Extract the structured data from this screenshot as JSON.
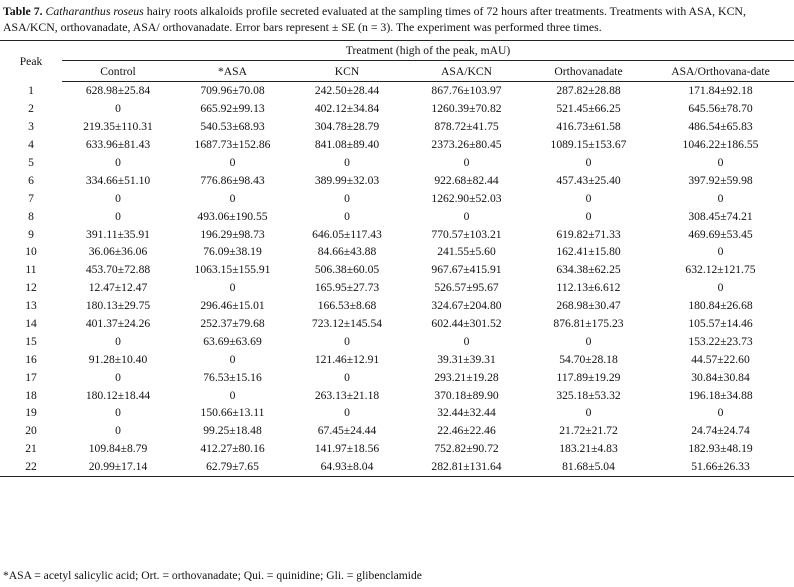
{
  "caption": {
    "label": "Table 7.",
    "species": "Catharanthus roseus",
    "text": "hairy roots alkaloids profile secreted evaluated at the sampling times of 72 hours after treatments. Treatments with ASA, KCN, ASA/KCN, orthovanadate, ASA/ orthovanadate. Error bars represent ± SE (n = 3). The experiment was performed three times."
  },
  "header": {
    "peak": "Peak",
    "treatment": "Treatment (high of the peak, mAU)",
    "columns": [
      "Control",
      "*ASA",
      "KCN",
      "ASA/KCN",
      "Orthovanadate",
      "ASA/Orthovana-date"
    ]
  },
  "rows": [
    [
      "1",
      "628.98±25.84",
      "709.96±70.08",
      "242.50±28.44",
      "867.76±103.97",
      "287.82±28.88",
      "171.84±92.18"
    ],
    [
      "2",
      "0",
      "665.92±99.13",
      "402.12±34.84",
      "1260.39±70.82",
      "521.45±66.25",
      "645.56±78.70"
    ],
    [
      "3",
      "219.35±110.31",
      "540.53±68.93",
      "304.78±28.79",
      "878.72±41.75",
      "416.73±61.58",
      "486.54±65.83"
    ],
    [
      "4",
      "633.96±81.43",
      "1687.73±152.86",
      "841.08±89.40",
      "2373.26±80.45",
      "1089.15±153.67",
      "1046.22±186.55"
    ],
    [
      "5",
      "0",
      "0",
      "0",
      "0",
      "0",
      "0"
    ],
    [
      "6",
      "334.66±51.10",
      "776.86±98.43",
      "389.99±32.03",
      "922.68±82.44",
      "457.43±25.40",
      "397.92±59.98"
    ],
    [
      "7",
      "0",
      "0",
      "0",
      "1262.90±52.03",
      "0",
      "0"
    ],
    [
      "8",
      "0",
      "493.06±190.55",
      "0",
      "0",
      "0",
      "308.45±74.21"
    ],
    [
      "9",
      "391.11±35.91",
      "196.29±98.73",
      "646.05±117.43",
      "770.57±103.21",
      "619.82±71.33",
      "469.69±53.45"
    ],
    [
      "10",
      "36.06±36.06",
      "76.09±38.19",
      "84.66±43.88",
      "241.55±5.60",
      "162.41±15.80",
      "0"
    ],
    [
      "11",
      "453.70±72.88",
      "1063.15±155.91",
      "506.38±60.05",
      "967.67±415.91",
      "634.38±62.25",
      "632.12±121.75"
    ],
    [
      "12",
      "12.47±12.47",
      "0",
      "165.95±27.73",
      "526.57±95.67",
      "112.13±6.612",
      "0"
    ],
    [
      "13",
      "180.13±29.75",
      "296.46±15.01",
      "166.53±8.68",
      "324.67±204.80",
      "268.98±30.47",
      "180.84±26.68"
    ],
    [
      "14",
      "401.37±24.26",
      "252.37±79.68",
      "723.12±145.54",
      "602.44±301.52",
      "876.81±175.23",
      "105.57±14.46"
    ],
    [
      "15",
      "0",
      "63.69±63.69",
      "0",
      "0",
      "0",
      "153.22±23.73"
    ],
    [
      "16",
      "91.28±10.40",
      "0",
      "121.46±12.91",
      "39.31±39.31",
      "54.70±28.18",
      "44.57±22.60"
    ],
    [
      "17",
      "0",
      "76.53±15.16",
      "0",
      "293.21±19.28",
      "117.89±19.29",
      "30.84±30.84"
    ],
    [
      "18",
      "180.12±18.44",
      "0",
      "263.13±21.18",
      "370.18±89.90",
      "325.18±53.32",
      "196.18±34.88"
    ],
    [
      "19",
      "0",
      "150.66±13.11",
      "0",
      "32.44±32.44",
      "0",
      "0"
    ],
    [
      "20",
      "0",
      "99.25±18.48",
      "67.45±24.44",
      "22.46±22.46",
      "21.72±21.72",
      "24.74±24.74"
    ],
    [
      "21",
      "109.84±8.79",
      "412.27±80.16",
      "141.97±18.56",
      "752.82±90.72",
      "183.21±4.83",
      "182.93±48.19"
    ],
    [
      "22",
      "20.99±17.14",
      "62.79±7.65",
      "64.93±8.04",
      "282.81±131.64",
      "81.68±5.04",
      "51.66±26.33"
    ]
  ],
  "footnote": "*ASA = acetyl salicylic acid; Ort. = orthovanadate; Qui. = quinidine; Gli. = glibenclamide"
}
